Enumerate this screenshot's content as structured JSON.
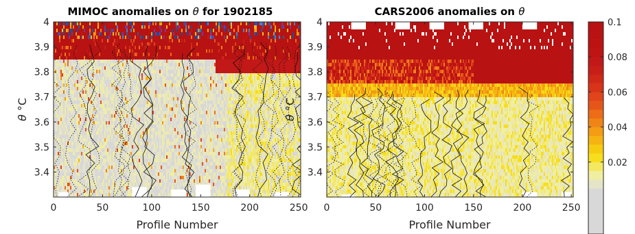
{
  "chart_data": [
    {
      "type": "heatmap",
      "title": "MIMOC anomalies on θ  for 1902185",
      "title_main": "MIMOC anomalies on ",
      "title_symbol": "θ",
      "title_suffix": "  for 1902185",
      "xlabel": "Profile Number",
      "ylabel_symbol": "θ",
      "ylabel_unit": "°C",
      "xlim": [
        0,
        252
      ],
      "ylim": [
        3.3,
        4.0
      ],
      "xticks": [
        0,
        50,
        100,
        150,
        200,
        250
      ],
      "yticks": [
        3.4,
        3.5,
        3.6,
        3.7,
        3.8,
        3.9,
        4.0
      ],
      "ytick_labels": [
        "3.4",
        "3.5",
        "3.6",
        "3.7",
        "3.8",
        "3.9",
        "4"
      ],
      "bands": [
        {
          "y_range": [
            3.94,
            4.0
          ],
          "description_value": 0.1,
          "pattern": "multicolor"
        },
        {
          "y_range": [
            3.86,
            3.94
          ],
          "value": 0.1,
          "x_range": [
            0,
            252
          ]
        },
        {
          "y_range": [
            3.8,
            3.86
          ],
          "value": 0.1,
          "x_range": [
            165,
            252
          ]
        },
        {
          "y_range": [
            3.3,
            3.86
          ],
          "value": 0.005
        }
      ],
      "contours": "black solid and dotted lines"
    },
    {
      "type": "heatmap",
      "title": "CARS2006 anomalies on θ",
      "title_main": "CARS2006 anomalies on ",
      "title_symbol": "θ",
      "xlabel": "Profile Number",
      "ylabel_symbol": "θ",
      "ylabel_unit": "°C",
      "xlim": [
        0,
        252
      ],
      "ylim": [
        3.3,
        4.0
      ],
      "xticks": [
        0,
        50,
        100,
        150,
        200,
        250
      ],
      "yticks": [
        3.4,
        3.5,
        3.6,
        3.7,
        3.8,
        3.9,
        4.0
      ],
      "ytick_labels": [
        "3.4",
        "3.5",
        "3.6",
        "3.7",
        "3.8",
        "3.9",
        "4"
      ],
      "bands": [
        {
          "y_range": [
            3.85,
            4.0
          ],
          "value": 0.1,
          "x_range": [
            0,
            252
          ]
        },
        {
          "y_range": [
            3.76,
            3.85
          ],
          "value": 0.1,
          "x_range": [
            150,
            252
          ]
        },
        {
          "y_range": [
            3.76,
            3.85
          ],
          "value": 0.05,
          "x_range": [
            0,
            150
          ]
        },
        {
          "y_range": [
            3.7,
            3.76
          ],
          "value": 0.03
        },
        {
          "y_range": [
            3.3,
            3.7
          ],
          "value": 0.01
        }
      ],
      "contours": "black solid and dotted lines"
    }
  ],
  "colorbar": {
    "clim": [
      0,
      0.1
    ],
    "ticks": [
      0.02,
      0.04,
      0.06,
      0.08,
      0.1
    ],
    "tick_labels": [
      "0.02",
      "0.04",
      "0.06",
      "0.08",
      "0.1"
    ],
    "levels": 20,
    "colors": [
      "#d8d8d8",
      "#e6e4c8",
      "#f0eea0",
      "#f4e860",
      "#f6de1c",
      "#f6cc10",
      "#f5b412",
      "#f39c14",
      "#f08416",
      "#ec6c18",
      "#e6561a",
      "#e0441a",
      "#d8341a",
      "#d02818",
      "#c81e18",
      "#c21818",
      "#be1414",
      "#bc1212",
      "#ba1212",
      "#b81212"
    ]
  }
}
